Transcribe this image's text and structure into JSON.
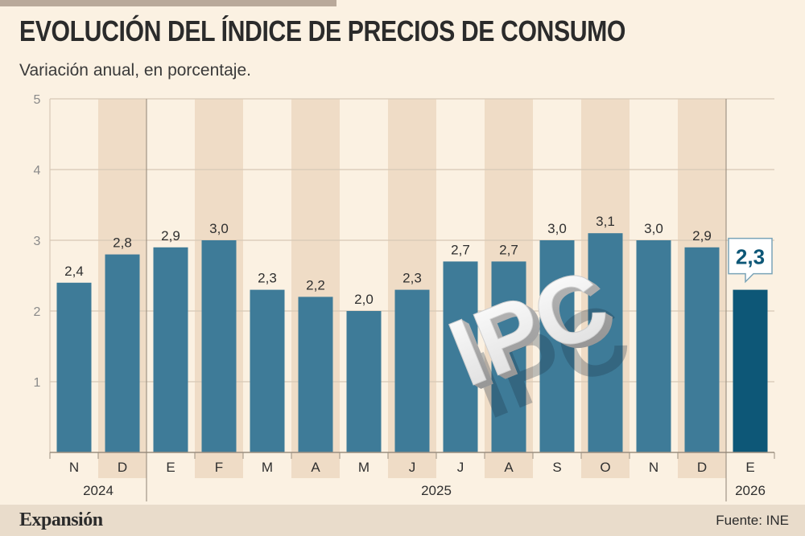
{
  "header": {
    "title": "EVOLUCIÓN DEL ÍNDICE DE PRECIOS DE CONSUMO",
    "subtitle": "Variación anual, en porcentaje."
  },
  "chart_data": {
    "type": "bar",
    "categories": [
      "N",
      "D",
      "E",
      "F",
      "M",
      "A",
      "M",
      "J",
      "J",
      "A",
      "S",
      "O",
      "N",
      "D",
      "E"
    ],
    "values": [
      2.4,
      2.8,
      2.9,
      3.0,
      2.3,
      2.2,
      2.0,
      2.3,
      2.7,
      2.7,
      3.0,
      3.1,
      3.0,
      2.9,
      2.3
    ],
    "value_labels": [
      "2,4",
      "2,8",
      "2,9",
      "3,0",
      "2,3",
      "2,2",
      "2,0",
      "2,3",
      "2,7",
      "2,7",
      "3,0",
      "3,1",
      "3,0",
      "2,9",
      "2,3"
    ],
    "years": [
      {
        "label": "2024",
        "start": 0,
        "end": 1
      },
      {
        "label": "2025",
        "start": 2,
        "end": 13
      },
      {
        "label": "2026",
        "start": 14,
        "end": 14
      }
    ],
    "ylim": [
      0,
      5
    ],
    "yticks": [
      1,
      2,
      3,
      4,
      5
    ],
    "highlight_index": 14,
    "grid": true,
    "decoration_text": "IPC",
    "colors": {
      "bar": "#3e7b98",
      "bar_highlight": "#0d5777",
      "stripe": "#efdcc6",
      "grid": "#d7c8b6"
    }
  },
  "footer": {
    "brand": "Expansión",
    "source": "Fuente: INE"
  }
}
